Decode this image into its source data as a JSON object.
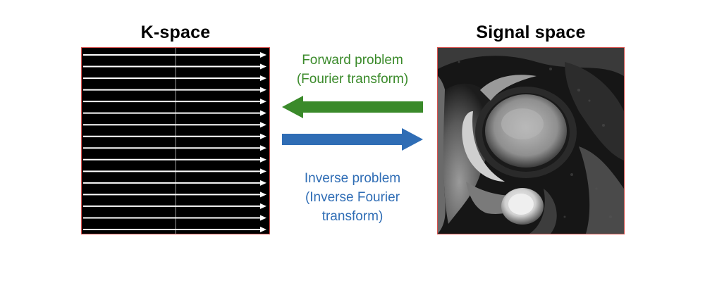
{
  "kspace": {
    "title": "K-space",
    "line_count": 16,
    "line_color": "#ffffff",
    "center_line_color": "#9a9a9a"
  },
  "signal": {
    "title": "Signal space",
    "image": "cardiac-mri-short-axis"
  },
  "forward": {
    "lines": [
      "Forward problem",
      "(Fourier transform)"
    ],
    "color": "#3a8a2a",
    "arrow_direction": "left"
  },
  "inverse": {
    "lines": [
      "Inverse problem",
      "(Inverse Fourier",
      "transform)"
    ],
    "color": "#2f6db5",
    "arrow_direction": "right"
  },
  "colors": {
    "panel_border": "#d9534f",
    "panel_background": "#000000"
  }
}
